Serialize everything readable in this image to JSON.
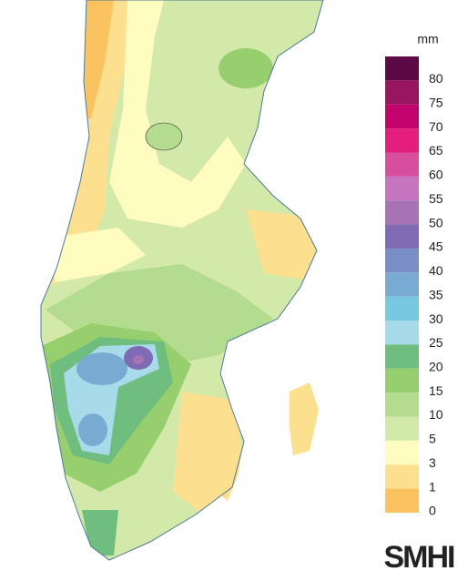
{
  "legend": {
    "unit": "mm",
    "items": [
      {
        "label": 80,
        "color": "#5c0a45"
      },
      {
        "label": 75,
        "color": "#98155f"
      },
      {
        "label": 70,
        "color": "#c2036e"
      },
      {
        "label": 65,
        "color": "#e31e7c"
      },
      {
        "label": 60,
        "color": "#d74e9f"
      },
      {
        "label": 55,
        "color": "#c574bd"
      },
      {
        "label": 50,
        "color": "#a673b5"
      },
      {
        "label": 45,
        "color": "#7f6bb3"
      },
      {
        "label": 40,
        "color": "#7a8ec6"
      },
      {
        "label": 35,
        "color": "#79abd2"
      },
      {
        "label": 30,
        "color": "#78c8e2"
      },
      {
        "label": 25,
        "color": "#a8dbe9"
      },
      {
        "label": 20,
        "color": "#6fbd7f"
      },
      {
        "label": 15,
        "color": "#97cf6e"
      },
      {
        "label": 10,
        "color": "#b3dc8f"
      },
      {
        "label": 5,
        "color": "#d2e9aa"
      },
      {
        "label": 3,
        "color": "#fefcbf"
      },
      {
        "label": 1,
        "color": "#fde08f"
      },
      {
        "label": 0,
        "color": "#fbc35f"
      }
    ]
  },
  "logo": "SMHI"
}
